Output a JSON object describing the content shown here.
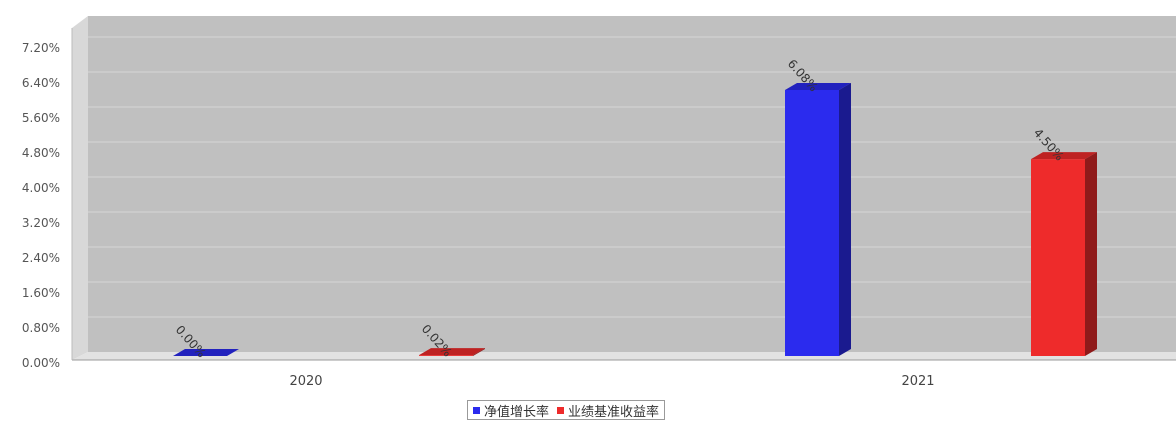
{
  "chart_data": {
    "type": "bar",
    "title": "",
    "categories": [
      "2020",
      "2021"
    ],
    "series": [
      {
        "name": "净值增长率",
        "color": "#2b2bee",
        "values": [
          0.0,
          6.08
        ],
        "labels": [
          "0.00%",
          "6.08%"
        ]
      },
      {
        "name": "业绩基准收益率",
        "color": "#ee2b2b",
        "values": [
          0.02,
          4.5
        ],
        "labels": [
          "0.02%",
          "4.50%"
        ]
      }
    ],
    "y_ticks": [
      "0.00%",
      "0.80%",
      "1.60%",
      "2.40%",
      "3.20%",
      "4.00%",
      "4.80%",
      "5.60%",
      "6.40%",
      "7.20%"
    ],
    "ylim": [
      0,
      7.6
    ],
    "xlabel": "",
    "ylabel": "",
    "grid": true,
    "legend_position": "bottom-center",
    "plot_background": "#c0c0c0"
  }
}
